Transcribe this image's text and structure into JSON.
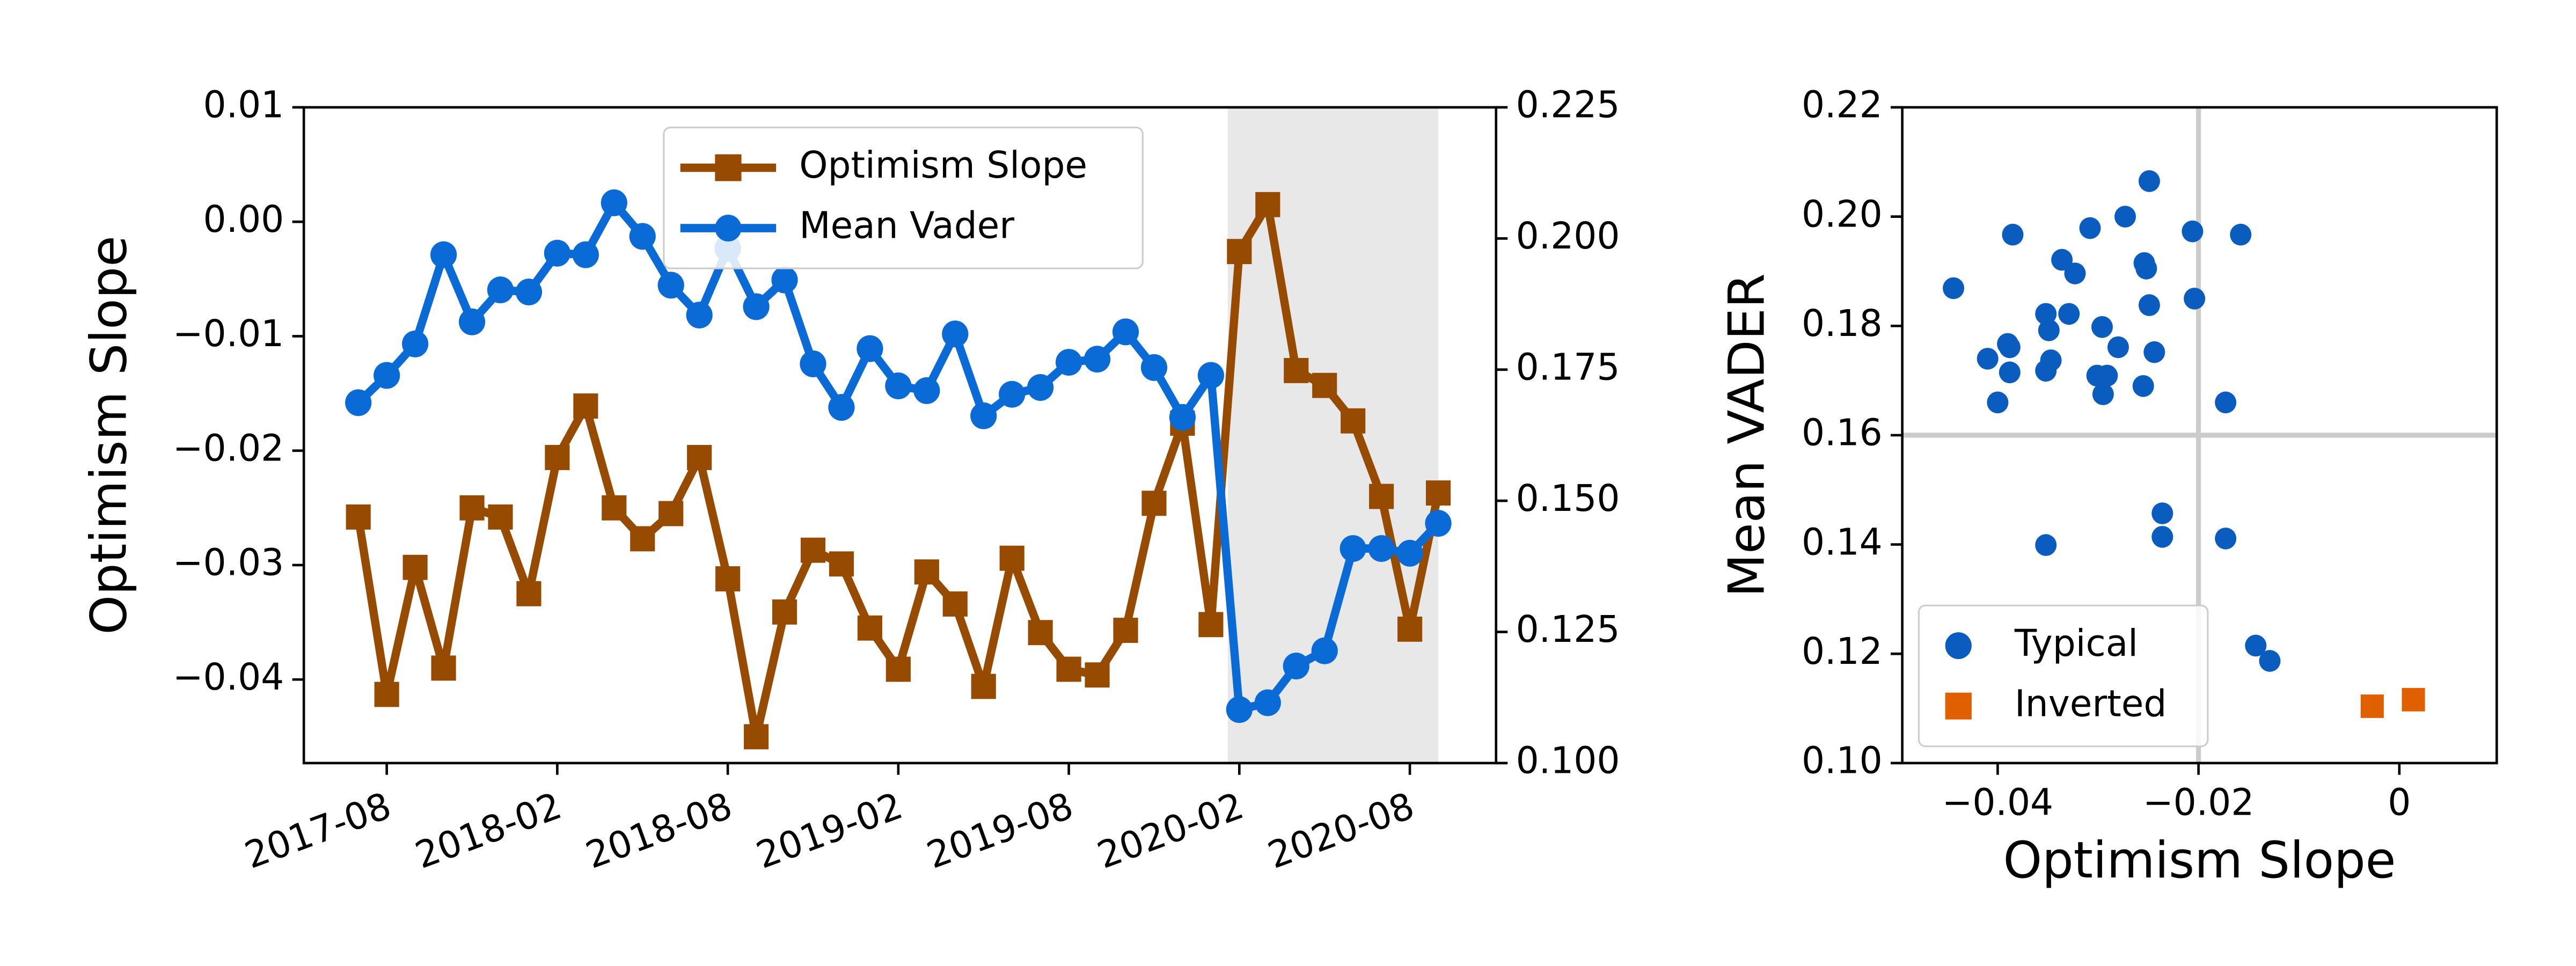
{
  "chart_data": [
    {
      "type": "line",
      "ylabel": "Optimism Slope",
      "x": [
        "2017-07",
        "2017-08",
        "2017-09",
        "2017-10",
        "2017-11",
        "2017-12",
        "2018-01",
        "2018-02",
        "2018-03",
        "2018-04",
        "2018-05",
        "2018-06",
        "2018-07",
        "2018-08",
        "2018-09",
        "2018-10",
        "2018-11",
        "2018-12",
        "2019-01",
        "2019-02",
        "2019-03",
        "2019-04",
        "2019-05",
        "2019-06",
        "2019-07",
        "2019-08",
        "2019-09",
        "2019-10",
        "2019-11",
        "2019-12",
        "2020-01",
        "2020-02",
        "2020-03",
        "2020-04",
        "2020-05",
        "2020-06",
        "2020-07",
        "2020-08",
        "2020-09"
      ],
      "xticks": [
        "2017-08",
        "2018-02",
        "2018-08",
        "2019-02",
        "2019-08",
        "2020-02",
        "2020-08"
      ],
      "shade": [
        "2020-02",
        "2020-09"
      ],
      "ylim": [
        -0.0473,
        0.01
      ],
      "yticks": [
        {
          "value": 0.01,
          "label": "0.01"
        },
        {
          "value": 0,
          "label": "0.00"
        },
        {
          "value": -0.01,
          "label": "−0.01"
        },
        {
          "value": -0.02,
          "label": "−0.02"
        },
        {
          "value": -0.03,
          "label": "−0.03"
        },
        {
          "value": -0.04,
          "label": "−0.04"
        }
      ],
      "y2lim": [
        0.1,
        0.225
      ],
      "y2ticks": [
        {
          "value": 0.225,
          "label": "0.225"
        },
        {
          "value": 0.2,
          "label": "0.200"
        },
        {
          "value": 0.175,
          "label": "0.175"
        },
        {
          "value": 0.15,
          "label": "0.150"
        },
        {
          "value": 0.125,
          "label": "0.125"
        },
        {
          "value": 0.1,
          "label": "0.100"
        }
      ],
      "legend": "upper center",
      "series": [
        {
          "name": "Optimism Slope",
          "color": "#964b00",
          "marker": "square",
          "axis": "y",
          "values": [
            -0.0258,
            -0.0413,
            -0.0302,
            -0.039,
            -0.025,
            -0.0258,
            -0.0325,
            -0.0206,
            -0.0161,
            -0.025,
            -0.0277,
            -0.0255,
            -0.0206,
            -0.0312,
            -0.045,
            -0.0341,
            -0.0287,
            -0.0299,
            -0.0355,
            -0.0391,
            -0.0306,
            -0.0334,
            -0.0406,
            -0.0294,
            -0.0359,
            -0.0391,
            -0.0396,
            -0.0357,
            -0.0246,
            -0.0176,
            -0.0352,
            -0.0026,
            0.0015,
            -0.013,
            -0.0143,
            -0.0174,
            -0.024,
            -0.0356,
            -0.0237
          ]
        },
        {
          "name": "Mean Vader",
          "color": "#0a6bd6",
          "marker": "circle",
          "axis": "y2",
          "values": [
            0.1687,
            0.1739,
            0.1799,
            0.1969,
            0.1841,
            0.1902,
            0.1898,
            0.1972,
            0.1969,
            0.2068,
            0.2004,
            0.1911,
            0.1854,
            0.1981,
            0.187,
            0.1921,
            0.1761,
            0.1678,
            0.179,
            0.1719,
            0.171,
            0.1818,
            0.1662,
            0.1703,
            0.1716,
            0.1764,
            0.177,
            0.1822,
            0.1754,
            0.1659,
            0.1739,
            0.1102,
            0.1115,
            0.1185,
            0.1214,
            0.1409,
            0.1409,
            0.14,
            0.1457
          ]
        }
      ]
    },
    {
      "type": "scatter",
      "xlabel": "Optimism Slope",
      "ylabel": "Mean VADER",
      "xlim": [
        -0.0495,
        0.0097
      ],
      "xticks": [
        {
          "value": -0.04,
          "label": "−0.04"
        },
        {
          "value": -0.02,
          "label": "−0.02"
        },
        0
      ],
      "ylim": [
        0.1,
        0.22
      ],
      "yticks": [
        {
          "value": 0.1,
          "label": "0.10"
        },
        {
          "value": 0.12,
          "label": "0.12"
        },
        {
          "value": 0.14,
          "label": "0.14"
        },
        {
          "value": 0.16,
          "label": "0.16"
        },
        {
          "value": 0.18,
          "label": "0.18"
        },
        {
          "value": 0.2,
          "label": "0.20"
        },
        {
          "value": 0.22,
          "label": "0.22"
        }
      ],
      "reference_lines": {
        "x": -0.02,
        "y": 0.16
      },
      "legend": "lower left",
      "series": [
        {
          "name": "Typical",
          "color": "#0a5cbf",
          "marker": "circle",
          "x": [
            -0.0444,
            -0.0385,
            -0.041,
            -0.039,
            -0.0388,
            -0.04,
            -0.0388,
            -0.0352,
            -0.0349,
            -0.0336,
            -0.0323,
            -0.0329,
            -0.0347,
            -0.0352,
            -0.0308,
            -0.0296,
            -0.0295,
            -0.0301,
            -0.0291,
            -0.028,
            -0.0273,
            -0.0255,
            -0.0254,
            -0.0252,
            -0.0249,
            -0.0249,
            -0.0244,
            -0.0206,
            -0.0204,
            -0.0158,
            -0.0173,
            -0.0352,
            -0.0236,
            -0.0236,
            -0.0173,
            -0.0143,
            -0.0129
          ],
          "y": [
            0.1869,
            0.1967,
            0.174,
            0.1767,
            0.1761,
            0.166,
            0.1715,
            0.1822,
            0.1792,
            0.1921,
            0.1896,
            0.1822,
            0.1737,
            0.1718,
            0.1979,
            0.1798,
            0.1675,
            0.1709,
            0.1709,
            0.1761,
            0.2,
            0.169,
            0.1915,
            0.1905,
            0.2065,
            0.1838,
            0.1752,
            0.1973,
            0.185,
            0.1967,
            0.166,
            0.1399,
            0.1457,
            0.1414,
            0.1411,
            0.1215,
            0.1187
          ]
        },
        {
          "name": "Inverted",
          "color": "#e06000",
          "marker": "square",
          "x": [
            -0.0027,
            0.0014
          ],
          "y": [
            0.1104,
            0.1116
          ]
        }
      ]
    }
  ]
}
